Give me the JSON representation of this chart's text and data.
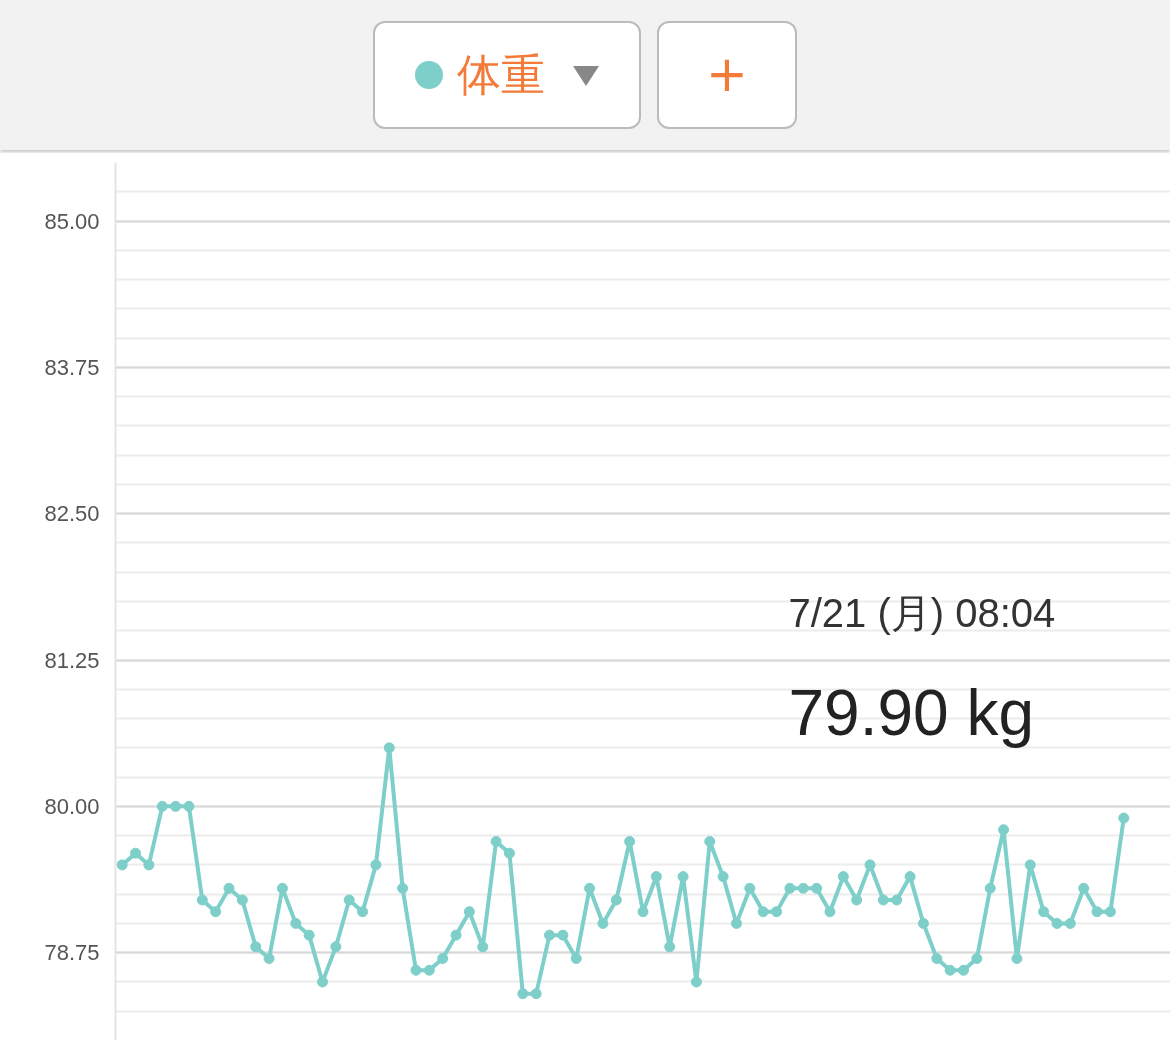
{
  "chart_data": {
    "type": "line",
    "categories": [
      null,
      null,
      null,
      null,
      null,
      null,
      null,
      null,
      null,
      null,
      null,
      null,
      null,
      null,
      null,
      null,
      null,
      null,
      null,
      null,
      null,
      null,
      null,
      null,
      null,
      null,
      null,
      null,
      null,
      null,
      null,
      null,
      null,
      null,
      null,
      null,
      null,
      null,
      null,
      null,
      null,
      null,
      null,
      null,
      null,
      null,
      null,
      null,
      null,
      null,
      null,
      null,
      null,
      null,
      null,
      null,
      null,
      null,
      null,
      null,
      null,
      null,
      null,
      null,
      null,
      null,
      null,
      null,
      null,
      null,
      null,
      null,
      null,
      null,
      null,
      null
    ],
    "series": [
      {
        "name": "体重",
        "color": "#7ecfca",
        "values": [
          79.5,
          79.6,
          79.5,
          80.0,
          80.0,
          80.0,
          79.2,
          79.1,
          79.3,
          79.2,
          78.8,
          78.7,
          79.3,
          79.0,
          78.9,
          78.5,
          78.8,
          79.2,
          79.1,
          79.5,
          80.5,
          79.3,
          78.6,
          78.6,
          78.7,
          78.9,
          79.1,
          78.8,
          79.7,
          79.6,
          78.4,
          78.4,
          78.9,
          78.9,
          78.7,
          79.3,
          79.0,
          79.2,
          79.7,
          79.1,
          79.4,
          78.8,
          79.4,
          78.5,
          79.7,
          79.4,
          79.0,
          79.3,
          79.1,
          79.1,
          79.3,
          79.3,
          79.3,
          79.1,
          79.4,
          79.2,
          79.5,
          79.2,
          79.2,
          79.4,
          79.0,
          78.7,
          78.6,
          78.6,
          78.7,
          79.3,
          79.8,
          78.7,
          79.5,
          79.1,
          79.0,
          79.0,
          79.3,
          79.1,
          79.1,
          79.9
        ]
      }
    ],
    "ylim": [
      78.0,
      85.5
    ],
    "yticks": [
      {
        "value": 78.75,
        "label": "78.75"
      },
      {
        "value": 80,
        "label": "80.00"
      },
      {
        "value": 81.25,
        "label": "81.25"
      },
      {
        "value": 82.5,
        "label": "82.50"
      },
      {
        "value": 83.75,
        "label": "83.75"
      },
      {
        "value": 85,
        "label": "85.00"
      }
    ],
    "tick_labels": "y",
    "grid": "y",
    "legend": "top",
    "marker": "circle",
    "line_style": "solid",
    "annotations": [
      "+",
      "7/21 (月) 08:04",
      "79.90 kg"
    ]
  }
}
